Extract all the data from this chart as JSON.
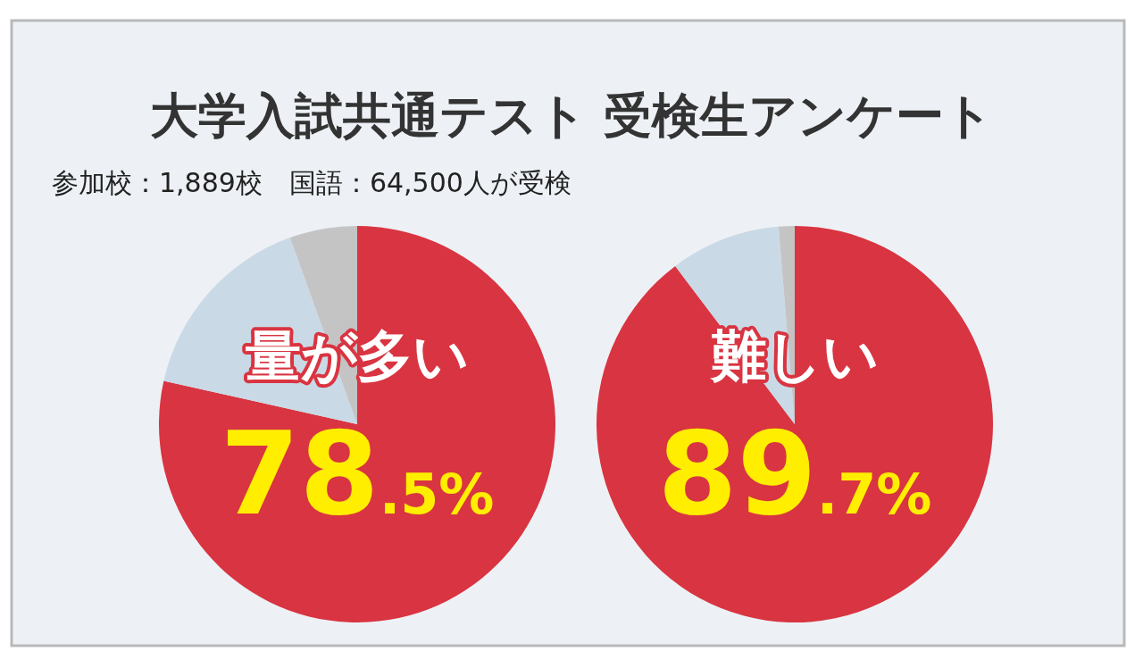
{
  "chart_data": [
    {
      "type": "other",
      "title": "大学入試共通テスト 受検生アンケート",
      "subtitle": "参加校：1,889校　国語：64,500人が受検"
    },
    {
      "type": "pie",
      "title": "量が多い",
      "categories": [
        null,
        null,
        null
      ],
      "values": [
        78.5,
        16.0,
        5.5
      ],
      "colors": [
        "#d93441",
        "#c9d9e6",
        "#c4c4c4"
      ],
      "value_labels": [
        "78.5%",
        null,
        null
      ]
    },
    {
      "type": "pie",
      "title": "難しい",
      "categories": [
        null,
        null,
        null
      ],
      "values": [
        89.7,
        9.0,
        1.3
      ],
      "colors": [
        "#d93441",
        "#c9d9e6",
        "#c4c4c4"
      ],
      "value_labels": [
        "89.7%",
        null,
        null
      ]
    }
  ]
}
